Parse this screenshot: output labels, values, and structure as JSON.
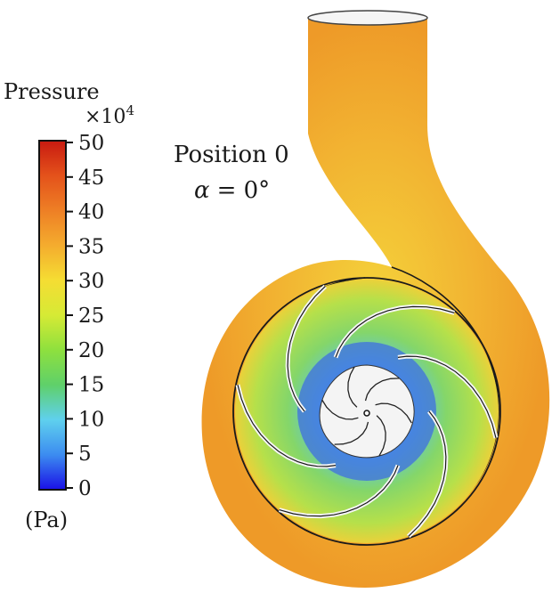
{
  "legend": {
    "title": "Pressure",
    "multiplier_base": "×10",
    "multiplier_exp": "4",
    "unit": "(Pa)",
    "ticks": [
      "50",
      "45",
      "40",
      "35",
      "30",
      "25",
      "20",
      "15",
      "10",
      "5",
      "0"
    ],
    "range": [
      0,
      50
    ],
    "colors": [
      "#1a10e6",
      "#3c8cf0",
      "#5fd0ee",
      "#5fd06a",
      "#8ee03e",
      "#d6ea35",
      "#f5dd33",
      "#f4ac2e",
      "#ee7f25",
      "#e4521b",
      "#c81a10"
    ]
  },
  "annotation": {
    "position_label": "Position 0",
    "alpha_symbol": "α",
    "alpha_equals": "= 0°"
  },
  "colors": {
    "casing": "#ef9f2a",
    "impeller_passage": "#7fcf6e",
    "eye": "#4f86e6",
    "hub": "#f6f6f6",
    "outline": "#1a1a1a"
  }
}
